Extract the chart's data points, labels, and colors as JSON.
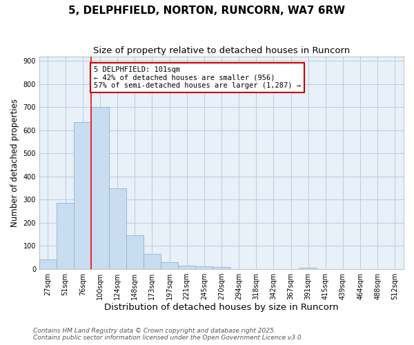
{
  "title": "5, DELPHFIELD, NORTON, RUNCORN, WA7 6RW",
  "subtitle": "Size of property relative to detached houses in Runcorn",
  "xlabel": "Distribution of detached houses by size in Runcorn",
  "ylabel": "Number of detached properties",
  "categories": [
    "27sqm",
    "51sqm",
    "76sqm",
    "100sqm",
    "124sqm",
    "148sqm",
    "173sqm",
    "197sqm",
    "221sqm",
    "245sqm",
    "270sqm",
    "294sqm",
    "318sqm",
    "342sqm",
    "367sqm",
    "391sqm",
    "415sqm",
    "439sqm",
    "464sqm",
    "488sqm",
    "512sqm"
  ],
  "values": [
    40,
    285,
    635,
    700,
    350,
    145,
    65,
    30,
    15,
    10,
    8,
    0,
    0,
    0,
    0,
    5,
    0,
    0,
    0,
    0,
    0
  ],
  "bar_color": "#c9ddf0",
  "bar_edge_color": "#8ab4d4",
  "red_line_index": 3,
  "ylim": [
    0,
    920
  ],
  "yticks": [
    0,
    100,
    200,
    300,
    400,
    500,
    600,
    700,
    800,
    900
  ],
  "annotation_text": "5 DELPHFIELD: 101sqm\n← 42% of detached houses are smaller (956)\n57% of semi-detached houses are larger (1,287) →",
  "annotation_box_color": "#ffffff",
  "annotation_box_edge_color": "#cc0000",
  "footer_line1": "Contains HM Land Registry data © Crown copyright and database right 2025.",
  "footer_line2": "Contains public sector information licensed under the Open Government Licence v3.0.",
  "background_color": "#ffffff",
  "plot_bg_color": "#e8f0f8",
  "grid_color": "#b8cce0",
  "title_fontsize": 11,
  "subtitle_fontsize": 9.5,
  "tick_fontsize": 7,
  "ylabel_fontsize": 8.5,
  "xlabel_fontsize": 9.5,
  "footer_fontsize": 6.5
}
